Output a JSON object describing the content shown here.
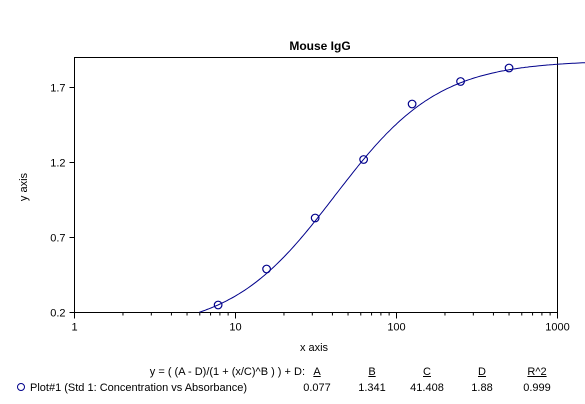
{
  "chart_data": {
    "type": "scatter",
    "title": "Mouse IgG",
    "xlabel": "x axis",
    "ylabel": "y axis",
    "xscale": "log",
    "xlim": [
      1,
      1000
    ],
    "ylim": [
      0.2,
      1.9
    ],
    "xticks": [
      "1",
      "10",
      "100",
      "1000"
    ],
    "yticks": [
      "0.2",
      "0.7",
      "1.2",
      "1.7"
    ],
    "yticks_values": [
      0.2,
      0.7,
      1.2,
      1.7
    ],
    "xticks_values": [
      1,
      10,
      100,
      1000
    ],
    "series": [
      {
        "name": "Plot#1 (Std 1: Concentration vs Absorbance)",
        "color": "#00008b",
        "marker": "open-circle",
        "x": [
          7.8,
          15.6,
          31.25,
          62.5,
          125,
          250,
          500
        ],
        "y": [
          0.25,
          0.49,
          0.83,
          1.22,
          1.59,
          1.74,
          1.83
        ]
      }
    ],
    "fit": {
      "equation": "y = ( (A - D)/(1 + (x/C)^B ) ) + D:",
      "params": {
        "A": 0.077,
        "B": 1.341,
        "C": 41.408,
        "D": 1.88
      }
    }
  },
  "legend": {
    "equation": "y = ( (A - D)/(1 + (x/C)^B ) ) + D:",
    "headers": [
      "A",
      "B",
      "C",
      "D",
      "R^2"
    ],
    "series_label": "Plot#1 (Std 1: Concentration vs Absorbance)",
    "values": [
      "0.077",
      "1.341",
      "41.408",
      "1.88",
      "0.999"
    ]
  }
}
